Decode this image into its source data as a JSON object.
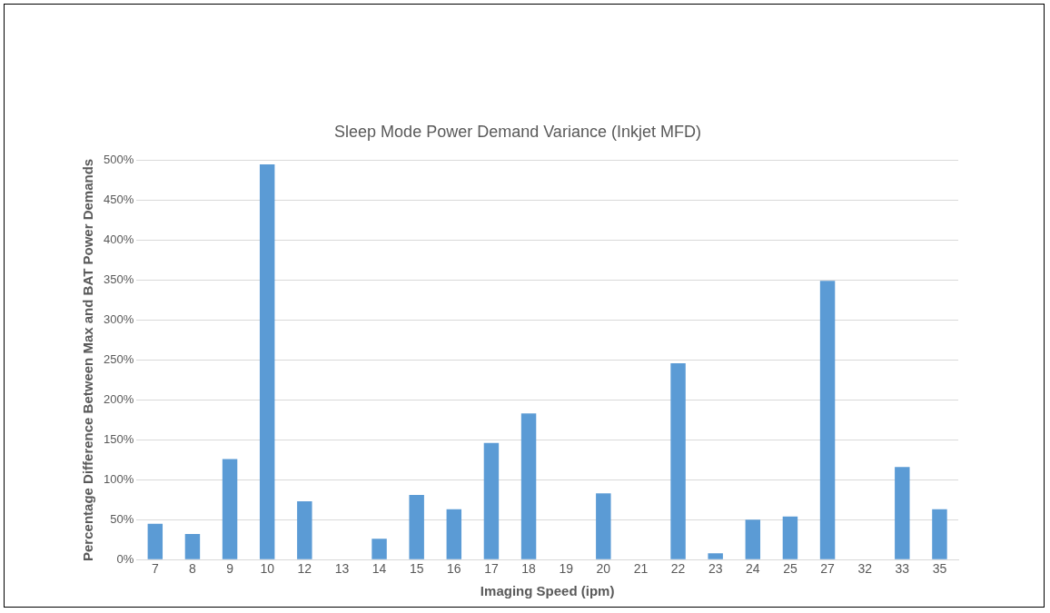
{
  "chart_data": {
    "type": "bar",
    "title": "Sleep Mode Power Demand Variance (Inkjet MFD)",
    "xlabel": "Imaging Speed (ipm)",
    "ylabel": "Percentage Difference Between Max and BAT Power Demands",
    "categories": [
      "7",
      "8",
      "9",
      "10",
      "12",
      "13",
      "14",
      "15",
      "16",
      "17",
      "18",
      "19",
      "20",
      "21",
      "22",
      "23",
      "24",
      "25",
      "27",
      "32",
      "33",
      "35"
    ],
    "values": [
      45,
      32,
      126,
      495,
      73,
      null,
      26,
      81,
      63,
      146,
      183,
      null,
      83,
      null,
      246,
      8,
      50,
      54,
      349,
      null,
      116,
      63
    ],
    "color": "#5b9bd5",
    "ylim": [
      0,
      500
    ],
    "yticks": [
      {
        "value": 0,
        "label": "0%"
      },
      {
        "value": 50,
        "label": "50%"
      },
      {
        "value": 100,
        "label": "100%"
      },
      {
        "value": 150,
        "label": "150%"
      },
      {
        "value": 200,
        "label": "200%"
      },
      {
        "value": 250,
        "label": "250%"
      },
      {
        "value": 300,
        "label": "300%"
      },
      {
        "value": 350,
        "label": "350%"
      },
      {
        "value": 400,
        "label": "400%"
      },
      {
        "value": 450,
        "label": "450%"
      },
      {
        "value": 500,
        "label": "500%"
      }
    ],
    "grid": "y"
  }
}
